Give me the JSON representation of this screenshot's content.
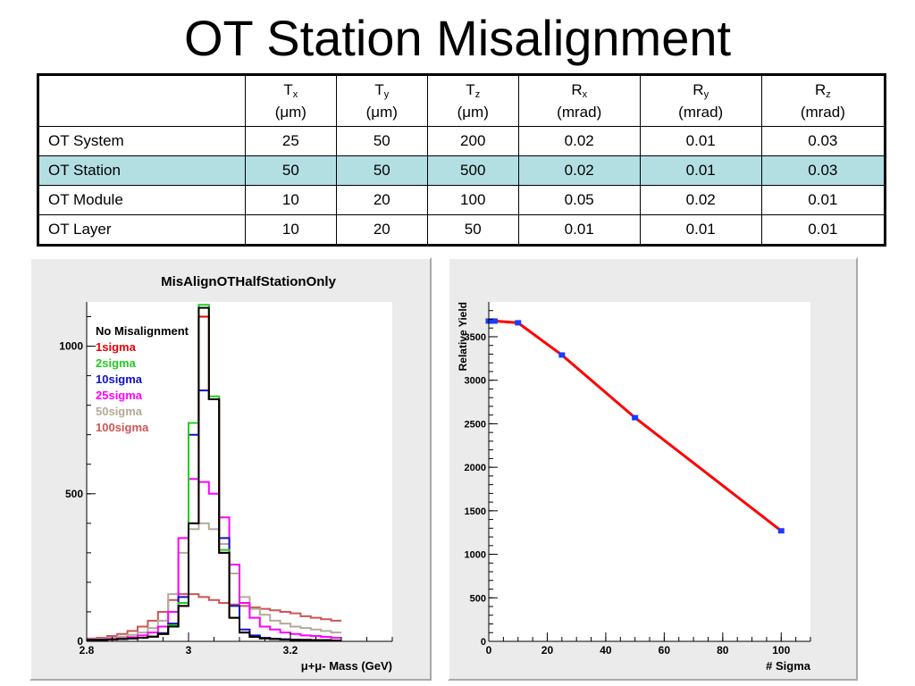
{
  "slide": {
    "title": "OT Station Misalignment"
  },
  "table": {
    "headers": [
      {
        "sym": "",
        "sub": "",
        "unit": ""
      },
      {
        "sym": "T",
        "sub": "x",
        "unit": "(μm)"
      },
      {
        "sym": "T",
        "sub": "y",
        "unit": "(μm)"
      },
      {
        "sym": "T",
        "sub": "z",
        "unit": "(μm)"
      },
      {
        "sym": "R",
        "sub": "x",
        "unit": "(mrad)"
      },
      {
        "sym": "R",
        "sub": "y",
        "unit": "(mrad)"
      },
      {
        "sym": "R",
        "sub": "z",
        "unit": "(mrad)"
      }
    ],
    "rows": [
      {
        "label": "OT System",
        "values": [
          "25",
          "50",
          "200",
          "0.02",
          "0.01",
          "0.03"
        ]
      },
      {
        "label": "OT Station",
        "values": [
          "50",
          "50",
          "500",
          "0.02",
          "0.01",
          "0.03"
        ]
      },
      {
        "label": "OT Module",
        "values": [
          "10",
          "20",
          "100",
          "0.05",
          "0.02",
          "0.01"
        ]
      },
      {
        "label": "OT Layer",
        "values": [
          "10",
          "20",
          "50",
          "0.01",
          "0.01",
          "0.01"
        ]
      }
    ],
    "highlight_color": "#b3dfe3"
  },
  "chart_data": [
    {
      "type": "line",
      "title": "MisAlignOTHalfStationOnly",
      "xlabel": "μ+μ- Mass (GeV)",
      "ylabel": "",
      "xlim": [
        2.8,
        3.4
      ],
      "ylim": [
        0,
        1150
      ],
      "x_ticks": [
        "2.8",
        "3",
        "3.2"
      ],
      "y_ticks": [
        "0",
        "500",
        "1000"
      ],
      "bin_edges": [
        2.8,
        2.82,
        2.84,
        2.86,
        2.88,
        2.9,
        2.92,
        2.94,
        2.96,
        2.98,
        3.0,
        3.02,
        3.04,
        3.06,
        3.08,
        3.1,
        3.12,
        3.14,
        3.16,
        3.18,
        3.2,
        3.22,
        3.24,
        3.26,
        3.28,
        3.3
      ],
      "series": [
        {
          "name": "No Misalignment",
          "color": "#000000",
          "values": [
            5,
            5,
            6,
            8,
            10,
            12,
            16,
            25,
            50,
            120,
            400,
            1130,
            820,
            300,
            80,
            30,
            15,
            10,
            8,
            6,
            5,
            5,
            4,
            4,
            3
          ]
        },
        {
          "name": "1sigma",
          "color": "#e8000b",
          "values": [
            5,
            5,
            6,
            8,
            10,
            12,
            16,
            25,
            50,
            120,
            400,
            1100,
            820,
            300,
            80,
            30,
            15,
            10,
            8,
            6,
            5,
            5,
            4,
            4,
            3
          ]
        },
        {
          "name": "2sigma",
          "color": "#22cc22",
          "values": [
            5,
            5,
            6,
            8,
            10,
            12,
            16,
            25,
            55,
            130,
            740,
            1140,
            830,
            310,
            80,
            30,
            15,
            10,
            8,
            6,
            5,
            5,
            4,
            4,
            3
          ]
        },
        {
          "name": "10sigma",
          "color": "#1010c8",
          "values": [
            5,
            5,
            6,
            8,
            10,
            12,
            16,
            28,
            60,
            150,
            700,
            850,
            820,
            350,
            120,
            40,
            20,
            12,
            9,
            7,
            6,
            5,
            4,
            4,
            3
          ]
        },
        {
          "name": "25sigma",
          "color": "#ff00ff",
          "values": [
            6,
            6,
            8,
            10,
            14,
            20,
            30,
            50,
            100,
            350,
            550,
            540,
            500,
            420,
            260,
            130,
            80,
            50,
            40,
            30,
            25,
            20,
            18,
            15,
            12
          ]
        },
        {
          "name": "50sigma",
          "color": "#b4aa9a",
          "values": [
            8,
            8,
            12,
            16,
            22,
            30,
            45,
            70,
            160,
            300,
            380,
            400,
            380,
            330,
            230,
            150,
            110,
            90,
            70,
            60,
            50,
            45,
            40,
            35,
            30
          ]
        },
        {
          "name": "100sigma",
          "color": "#cc5555",
          "values": [
            10,
            12,
            18,
            25,
            35,
            50,
            70,
            100,
            140,
            160,
            160,
            150,
            140,
            130,
            125,
            120,
            115,
            110,
            105,
            100,
            95,
            85,
            80,
            75,
            70
          ]
        }
      ]
    },
    {
      "type": "line",
      "title": "",
      "xlabel": "# Sigma",
      "ylabel": "Relative Yield",
      "xlim": [
        0,
        110
      ],
      "ylim": [
        0,
        3900
      ],
      "x_ticks": [
        "0",
        "20",
        "40",
        "60",
        "80",
        "100"
      ],
      "y_ticks": [
        "0",
        "500",
        "1000",
        "1500",
        "2000",
        "2500",
        "3000",
        "3500"
      ],
      "series": [
        {
          "name": "",
          "color": "#ff0000",
          "marker_color": "#1a3cff",
          "x": [
            0,
            1,
            2,
            10,
            25,
            50,
            100
          ],
          "y": [
            3680,
            3680,
            3680,
            3660,
            3290,
            2570,
            1270
          ]
        }
      ]
    }
  ]
}
